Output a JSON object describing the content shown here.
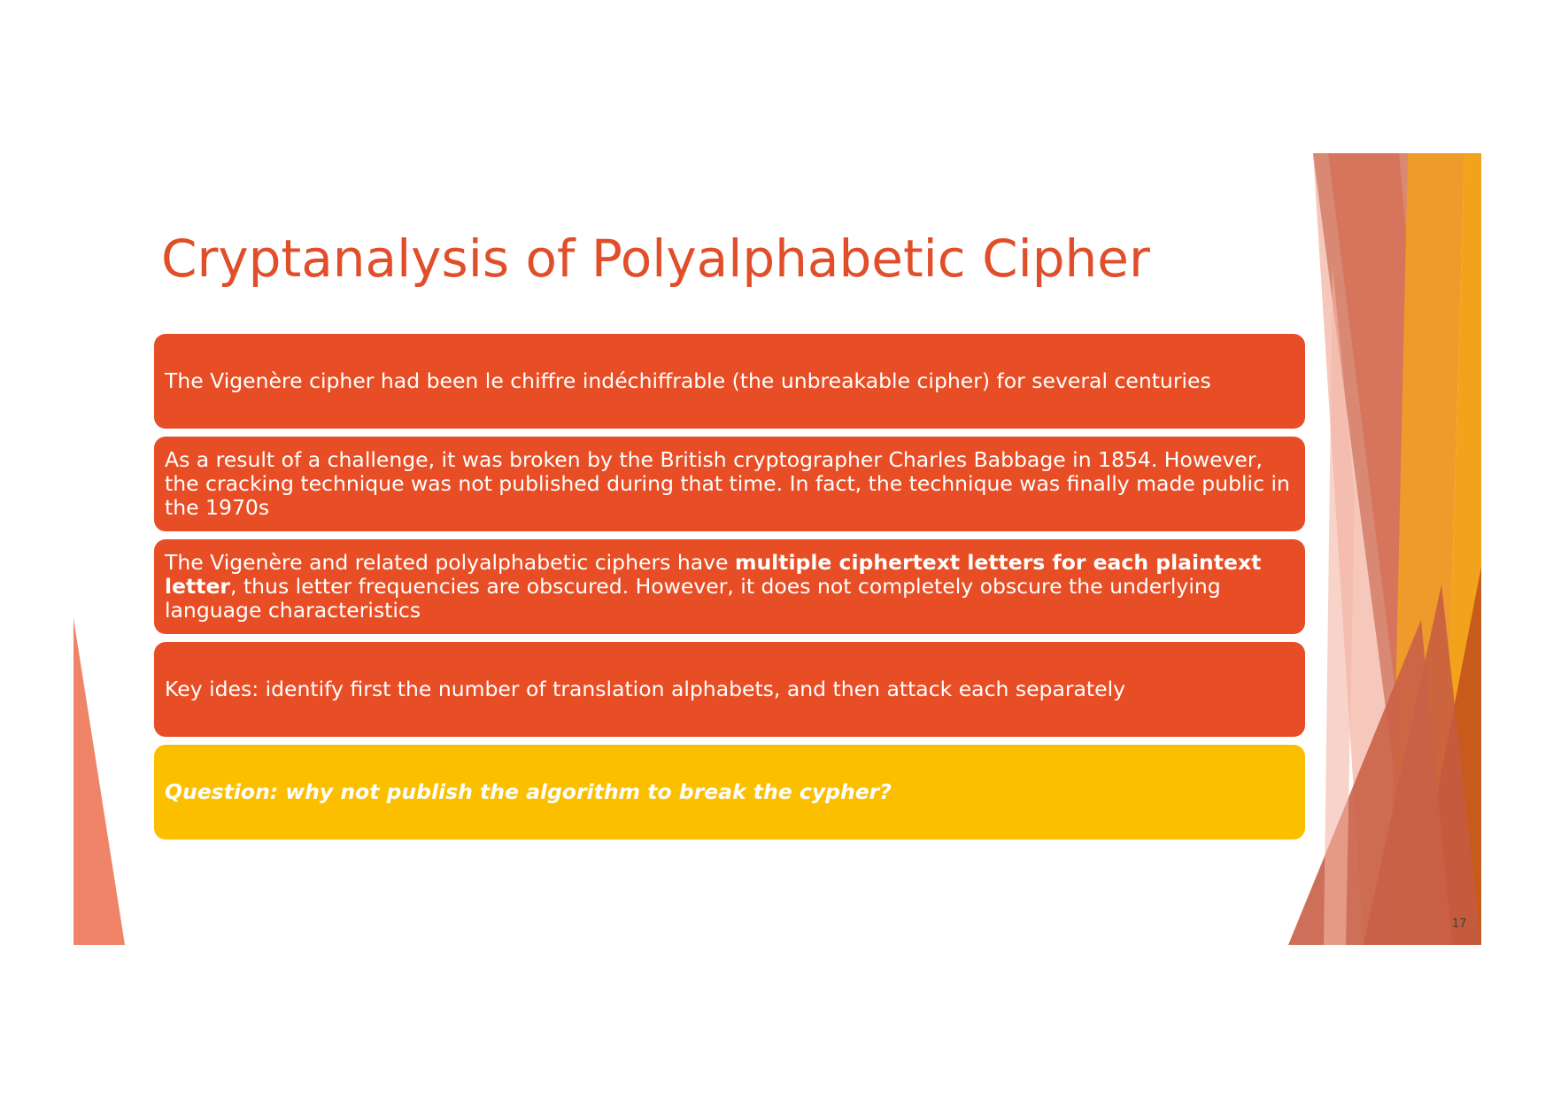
{
  "slide": {
    "title": "Cryptanalysis of Polyalphabetic Cipher",
    "page_number": "17",
    "boxes": [
      {
        "text": "The Vigenère cipher had been le chiffre indéchiffrable (the unbreakable cipher) for several centuries"
      },
      {
        "text": "As a result of a challenge, it was broken by the British cryptographer Charles Babbage in 1854. However, the cracking technique was not published during that time. In fact, the technique was finally made public in the 1970s"
      },
      {
        "text_before": "The Vigenère and related polyalphabetic ciphers have ",
        "text_bold": "multiple ciphertext letters for each plaintext letter",
        "text_after": ", thus letter frequencies are obscured. However, it does not completely obscure the underlying language characteristics"
      },
      {
        "text": "Key ides: identify first the number of translation alphabets, and then attack each separately"
      },
      {
        "text": "Question: why not publish the algorithm to break the cypher?"
      }
    ]
  },
  "colors": {
    "title": "#e04e2a",
    "box_orange": "#e84e25",
    "box_yellow": "#fcbf00"
  }
}
